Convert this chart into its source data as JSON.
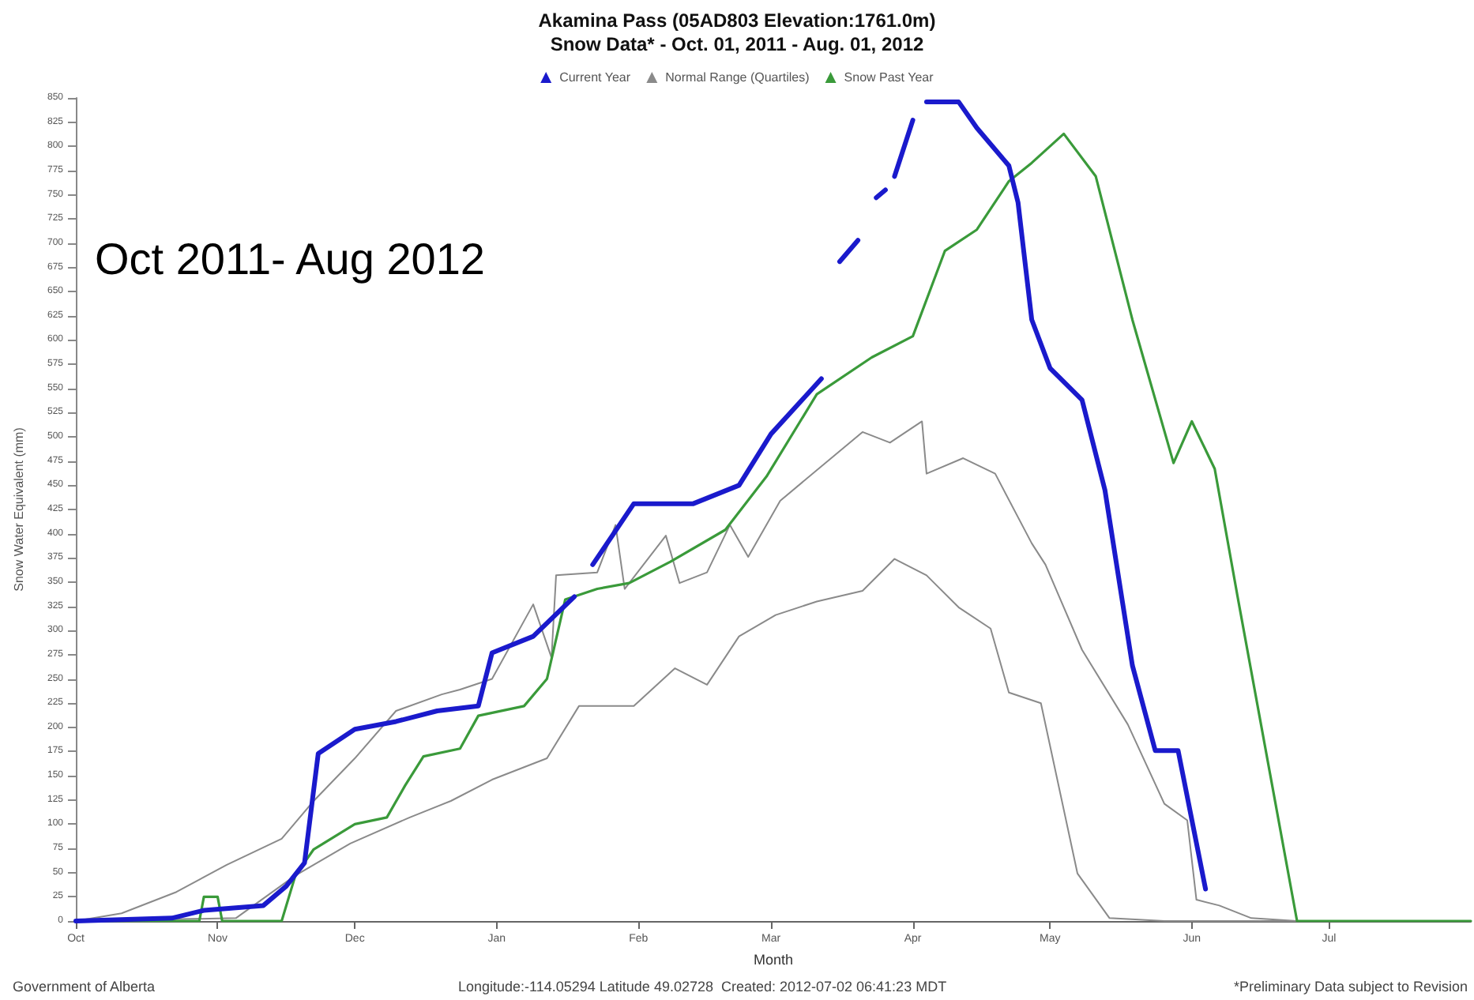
{
  "chart_data": {
    "type": "line",
    "title": "Akamina Pass (05AD803 Elevation:1761.0m)",
    "subtitle": "Snow Data* - Oct. 01, 2011 - Aug. 01, 2012",
    "xlabel": "Month",
    "ylabel": "Snow Water Equivalent (mm)",
    "annotations": [
      "Oct 2011- Aug 2012",
      "Government of Alberta",
      "Longitude:-114.05294 Latitude 49.02728  Created: 2012-07-02 06:41:23 MDT",
      "*Preliminary Data subject to Revision"
    ],
    "xlim": [
      "2011-10-01",
      "2012-08-01"
    ],
    "xticks": [
      {
        "value": "2011-10-01",
        "label": "Oct"
      },
      {
        "value": "2011-11-01",
        "label": "Nov"
      },
      {
        "value": "2011-12-01",
        "label": "Dec"
      },
      {
        "value": "2012-01-01",
        "label": "Jan"
      },
      {
        "value": "2012-02-01",
        "label": "Feb"
      },
      {
        "value": "2012-03-01",
        "label": "Mar"
      },
      {
        "value": "2012-04-01",
        "label": "Apr"
      },
      {
        "value": "2012-05-01",
        "label": "May"
      },
      {
        "value": "2012-06-01",
        "label": "Jun"
      },
      {
        "value": "2012-07-01",
        "label": "Jul"
      }
    ],
    "ylim": [
      0,
      850
    ],
    "yticks": [
      0,
      25,
      50,
      75,
      100,
      125,
      150,
      175,
      200,
      225,
      250,
      275,
      300,
      325,
      350,
      375,
      400,
      425,
      450,
      475,
      500,
      525,
      550,
      575,
      600,
      625,
      650,
      675,
      700,
      725,
      750,
      775,
      800,
      825,
      850
    ],
    "grid": false,
    "legend": "top",
    "marker": "none",
    "line_style": "solid",
    "series": [
      {
        "name": "Current Year",
        "color": "#1a1acc",
        "x": [
          "2011-10-01",
          "2011-10-22",
          "2011-10-29",
          "2011-11-11",
          "2011-11-16",
          "2011-11-20",
          "2011-11-23",
          "2011-12-01",
          "2011-12-10",
          "2011-12-19",
          "2011-12-28",
          "2011-12-31",
          "2012-01-09",
          "2012-01-18",
          "2012-01-19",
          "2012-01-22",
          "2012-01-31",
          "2012-02-13",
          "2012-02-23",
          "2012-03-01",
          "2012-03-12",
          "2012-03-14",
          "2012-03-16",
          "2012-03-20",
          "2012-03-22",
          "2012-03-24",
          "2012-03-26",
          "2012-03-27",
          "2012-03-28",
          "2012-04-01",
          "2012-04-02",
          "2012-04-04",
          "2012-04-11",
          "2012-04-15",
          "2012-04-22",
          "2012-04-24",
          "2012-04-27",
          "2012-05-01",
          "2012-05-08",
          "2012-05-13",
          "2012-05-19",
          "2012-05-24",
          "2012-05-29",
          "2012-06-04"
        ],
        "values": [
          0,
          3,
          11,
          16,
          36,
          60,
          173,
          198,
          206,
          217,
          222,
          277,
          294,
          335,
          null,
          368,
          431,
          431,
          450,
          503,
          560,
          null,
          681,
          703,
          null,
          747,
          755,
          null,
          769,
          827,
          null,
          846,
          846,
          819,
          780,
          742,
          621,
          571,
          538,
          445,
          264,
          176,
          176,
          33
        ]
      },
      {
        "name": "Normal Range (Quartiles)",
        "color": "#8a8a8a",
        "x": [
          "2011-10-01",
          "2011-10-11",
          "2011-10-23",
          "2011-11-03",
          "2011-11-15",
          "2011-11-22",
          "2011-12-01",
          "2011-12-10",
          "2011-12-20",
          "2011-12-24",
          "2011-12-31",
          "2012-01-09",
          "2012-01-13",
          "2012-01-14",
          "2012-01-23",
          "2012-01-27",
          "2012-01-29",
          "2012-02-07",
          "2012-02-10",
          "2012-02-16",
          "2012-02-21",
          "2012-02-25",
          "2012-03-03",
          "2012-03-21",
          "2012-03-27",
          "2012-04-03",
          "2012-04-04",
          "2012-04-12",
          "2012-04-19",
          "2012-04-27",
          "2012-04-30",
          "2012-05-08",
          "2012-05-18",
          "2012-05-26",
          "2012-05-31",
          "2012-06-02",
          "2012-06-07",
          "2012-06-14",
          "2012-06-24",
          "2012-08-01"
        ],
        "values": [
          0,
          8,
          30,
          58,
          85,
          124,
          168,
          217,
          234,
          239,
          250,
          327,
          272,
          357,
          360,
          409,
          343,
          398,
          349,
          360,
          409,
          376,
          434,
          505,
          494,
          516,
          462,
          478,
          462,
          390,
          368,
          280,
          203,
          121,
          104,
          22,
          16,
          3,
          0,
          0
        ]
      },
      {
        "color": "#8a8a8a",
        "x": [
          "2011-10-01",
          "2011-11-05",
          "2011-11-18",
          "2011-11-30",
          "2011-12-13",
          "2011-12-22",
          "2011-12-31",
          "2012-01-12",
          "2012-01-19",
          "2012-01-31",
          "2012-02-09",
          "2012-02-16",
          "2012-02-23",
          "2012-03-02",
          "2012-03-11",
          "2012-03-21",
          "2012-03-28",
          "2012-04-04",
          "2012-04-11",
          "2012-04-18",
          "2012-04-22",
          "2012-04-29",
          "2012-05-07",
          "2012-05-14",
          "2012-05-26",
          "2012-08-01"
        ],
        "values": [
          0,
          3,
          47,
          80,
          107,
          124,
          146,
          168,
          222,
          222,
          261,
          244,
          294,
          316,
          330,
          341,
          374,
          357,
          324,
          302,
          236,
          225,
          49,
          3,
          0,
          0
        ]
      },
      {
        "name": "Snow Past Year",
        "color": "#3a9a3a",
        "x": [
          "2011-10-01",
          "2011-10-28",
          "2011-10-29",
          "2011-11-01",
          "2011-11-02",
          "2011-11-15",
          "2011-11-18",
          "2011-11-22",
          "2011-12-01",
          "2011-12-08",
          "2011-12-12",
          "2011-12-16",
          "2011-12-24",
          "2011-12-28",
          "2012-01-07",
          "2012-01-12",
          "2012-01-16",
          "2012-01-23",
          "2012-01-30",
          "2012-02-08",
          "2012-02-20",
          "2012-02-29",
          "2012-03-11",
          "2012-03-23",
          "2012-04-01",
          "2012-04-08",
          "2012-04-15",
          "2012-04-22",
          "2012-04-27",
          "2012-05-04",
          "2012-05-11",
          "2012-05-19",
          "2012-05-28",
          "2012-06-01",
          "2012-06-06",
          "2012-06-11",
          "2012-06-24",
          "2012-08-01"
        ],
        "values": [
          0,
          0,
          25,
          25,
          0,
          0,
          47,
          74,
          100,
          107,
          140,
          170,
          178,
          212,
          222,
          250,
          332,
          343,
          349,
          371,
          404,
          459,
          544,
          582,
          604,
          692,
          714,
          764,
          783,
          813,
          769,
          621,
          473,
          516,
          467,
          335,
          0,
          0
        ]
      }
    ]
  }
}
